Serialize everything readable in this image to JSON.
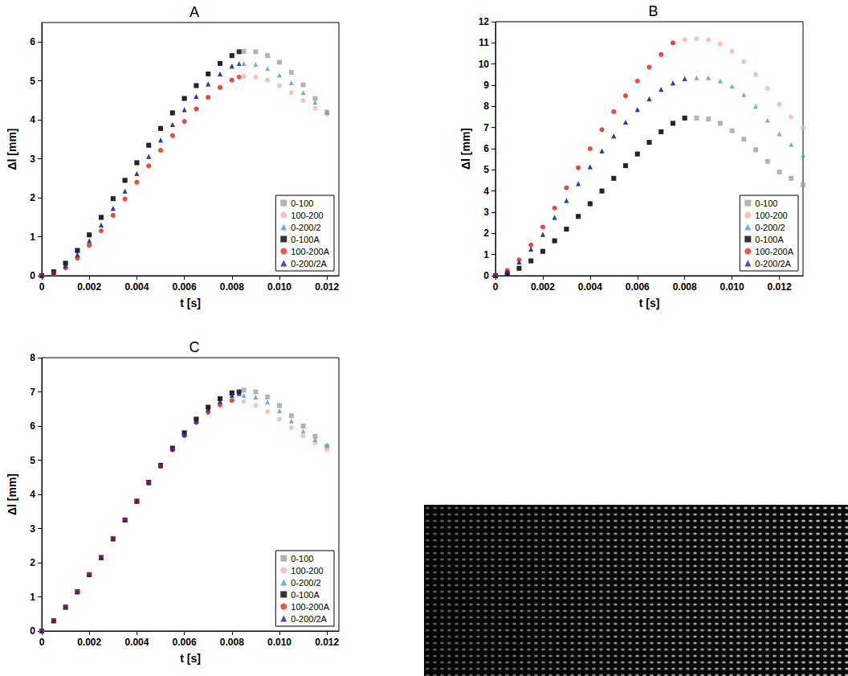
{
  "chart_data": [
    {
      "type": "scatter",
      "title": "A",
      "x_label": "t [s]",
      "y_label": "Δl [mm]",
      "xlim": [
        0,
        0.0125
      ],
      "ylim": [
        0,
        6.5
      ],
      "xticks": [
        0,
        0.002,
        0.004,
        0.006,
        0.008,
        {
          "value": 0.01,
          "label": "0.010"
        },
        0.012
      ],
      "yticks": [
        0,
        1,
        2,
        3,
        4,
        5,
        6
      ],
      "grid": false,
      "legend": "bottom right",
      "series": [
        {
          "name": "0-100",
          "color": "#a0a0a0",
          "marker": "square",
          "x": [
            0,
            0.0005,
            0.001,
            0.0015,
            0.002,
            0.0025,
            0.003,
            0.0035,
            0.004,
            0.0045,
            0.005,
            0.0055,
            0.006,
            0.0065,
            0.007,
            0.0075,
            0.008,
            0.0085,
            0.009,
            0.0095,
            0.01,
            0.0105,
            0.011,
            0.0115,
            0.012
          ],
          "values": [
            0,
            0.1,
            0.32,
            0.64,
            1.04,
            1.49,
            1.97,
            2.44,
            2.9,
            3.35,
            3.78,
            4.18,
            4.55,
            4.88,
            5.18,
            5.45,
            5.65,
            5.76,
            5.75,
            5.65,
            5.48,
            5.22,
            4.9,
            4.55,
            4.2
          ]
        },
        {
          "name": "100-200",
          "color": "#f2b3ac",
          "marker": "circle",
          "x": [
            0,
            0.0005,
            0.001,
            0.0015,
            0.002,
            0.0025,
            0.003,
            0.0035,
            0.004,
            0.0045,
            0.005,
            0.0055,
            0.006,
            0.0065,
            0.007,
            0.0075,
            0.008,
            0.0085,
            0.009,
            0.0095,
            0.01,
            0.0105,
            0.011,
            0.0115,
            0.012
          ],
          "values": [
            0,
            0.06,
            0.2,
            0.45,
            0.78,
            1.15,
            1.55,
            1.97,
            2.4,
            2.82,
            3.22,
            3.6,
            3.96,
            4.28,
            4.58,
            4.83,
            5.02,
            5.12,
            5.1,
            5.02,
            4.88,
            4.7,
            4.5,
            4.3,
            4.15
          ]
        },
        {
          "name": "0-200/2",
          "color": "#4aa3b8",
          "marker": "triangle",
          "x": [
            0,
            0.0005,
            0.001,
            0.0015,
            0.002,
            0.0025,
            0.003,
            0.0035,
            0.004,
            0.0045,
            0.005,
            0.0055,
            0.006,
            0.0065,
            0.007,
            0.0075,
            0.008,
            0.0085,
            0.009,
            0.0095,
            0.01,
            0.0105,
            0.011,
            0.0115,
            0.012
          ],
          "values": [
            0,
            0.08,
            0.26,
            0.54,
            0.9,
            1.3,
            1.73,
            2.17,
            2.62,
            3.06,
            3.48,
            3.88,
            4.26,
            4.6,
            4.92,
            5.18,
            5.38,
            5.45,
            5.42,
            5.32,
            5.15,
            4.95,
            4.7,
            4.45,
            4.2
          ]
        },
        {
          "name": "0-100A",
          "color": "#000000",
          "marker": "square",
          "x": [
            0,
            0.0005,
            0.001,
            0.0015,
            0.002,
            0.0025,
            0.003,
            0.0035,
            0.004,
            0.0045,
            0.005,
            0.0055,
            0.006,
            0.0065,
            0.007,
            0.0075,
            0.008,
            0.0083
          ],
          "values": [
            0,
            0.1,
            0.32,
            0.65,
            1.05,
            1.5,
            1.98,
            2.45,
            2.9,
            3.35,
            3.78,
            4.18,
            4.55,
            4.88,
            5.18,
            5.45,
            5.65,
            5.75
          ]
        },
        {
          "name": "100-200A",
          "color": "#e0301e",
          "marker": "circle",
          "x": [
            0,
            0.0005,
            0.001,
            0.0015,
            0.002,
            0.0025,
            0.003,
            0.0035,
            0.004,
            0.0045,
            0.005,
            0.0055,
            0.006,
            0.0065,
            0.007,
            0.0075,
            0.008,
            0.0083
          ],
          "values": [
            0,
            0.06,
            0.2,
            0.45,
            0.78,
            1.15,
            1.55,
            1.97,
            2.4,
            2.82,
            3.22,
            3.6,
            3.96,
            4.28,
            4.58,
            4.83,
            5.02,
            5.1
          ]
        },
        {
          "name": "0-200/2A",
          "color": "#1a1aa6",
          "marker": "triangle",
          "x": [
            0,
            0.0005,
            0.001,
            0.0015,
            0.002,
            0.0025,
            0.003,
            0.0035,
            0.004,
            0.0045,
            0.005,
            0.0055,
            0.006,
            0.0065,
            0.007,
            0.0075,
            0.008,
            0.0083
          ],
          "values": [
            0,
            0.08,
            0.26,
            0.54,
            0.9,
            1.3,
            1.73,
            2.17,
            2.62,
            3.06,
            3.48,
            3.88,
            4.26,
            4.6,
            4.92,
            5.18,
            5.38,
            5.45
          ]
        }
      ]
    },
    {
      "type": "scatter",
      "title": "B",
      "x_label": "t [s]",
      "y_label": "Δl [mm]",
      "xlim": [
        0,
        0.013
      ],
      "ylim": [
        0,
        12
      ],
      "xticks": [
        0,
        0.002,
        0.004,
        0.006,
        0.008,
        {
          "value": 0.01,
          "label": "0.010"
        },
        0.012
      ],
      "yticks": [
        0,
        1,
        2,
        3,
        4,
        5,
        6,
        7,
        8,
        9,
        10,
        11,
        12
      ],
      "grid": false,
      "legend": "bottom right",
      "series": [
        {
          "name": "0-100",
          "color": "#a0a0a0",
          "marker": "square",
          "x": [
            0,
            0.0005,
            0.001,
            0.0015,
            0.002,
            0.0025,
            0.003,
            0.0035,
            0.004,
            0.0045,
            0.005,
            0.0055,
            0.006,
            0.0065,
            0.007,
            0.0075,
            0.008,
            0.0085,
            0.009,
            0.0095,
            0.01,
            0.0105,
            0.011,
            0.0115,
            0.012,
            0.0125,
            0.013
          ],
          "values": [
            0,
            0.1,
            0.35,
            0.7,
            1.15,
            1.65,
            2.2,
            2.8,
            3.4,
            4.0,
            4.6,
            5.2,
            5.75,
            6.3,
            6.8,
            7.2,
            7.45,
            7.45,
            7.4,
            7.2,
            6.85,
            6.45,
            5.95,
            5.4,
            4.9,
            4.6,
            4.3
          ]
        },
        {
          "name": "100-200",
          "color": "#f2b3ac",
          "marker": "circle",
          "x": [
            0,
            0.0005,
            0.001,
            0.0015,
            0.002,
            0.0025,
            0.003,
            0.0035,
            0.004,
            0.0045,
            0.005,
            0.0055,
            0.006,
            0.0065,
            0.007,
            0.0075,
            0.008,
            0.0085,
            0.009,
            0.0095,
            0.01,
            0.0105,
            0.011,
            0.0115,
            0.012,
            0.0125,
            0.013
          ],
          "values": [
            0,
            0.25,
            0.75,
            1.45,
            2.3,
            3.2,
            4.15,
            5.1,
            6.0,
            6.9,
            7.75,
            8.5,
            9.2,
            9.85,
            10.45,
            11.0,
            11.15,
            11.2,
            11.15,
            10.95,
            10.6,
            10.1,
            9.5,
            8.85,
            8.1,
            7.5,
            7.0
          ]
        },
        {
          "name": "0-200/2",
          "color": "#4aa3b8",
          "marker": "triangle",
          "x": [
            0,
            0.0005,
            0.001,
            0.0015,
            0.002,
            0.0025,
            0.003,
            0.0035,
            0.004,
            0.0045,
            0.005,
            0.0055,
            0.006,
            0.0065,
            0.007,
            0.0075,
            0.008,
            0.0085,
            0.009,
            0.0095,
            0.01,
            0.0105,
            0.011,
            0.0115,
            0.012,
            0.0125,
            0.013
          ],
          "values": [
            0,
            0.2,
            0.65,
            1.25,
            1.95,
            2.75,
            3.55,
            4.35,
            5.15,
            5.9,
            6.6,
            7.25,
            7.85,
            8.35,
            8.8,
            9.1,
            9.3,
            9.35,
            9.35,
            9.2,
            8.95,
            8.55,
            8.0,
            7.35,
            6.7,
            6.2,
            5.7
          ]
        },
        {
          "name": "0-100A",
          "color": "#000000",
          "marker": "square",
          "x": [
            0,
            0.0005,
            0.001,
            0.0015,
            0.002,
            0.0025,
            0.003,
            0.0035,
            0.004,
            0.0045,
            0.005,
            0.0055,
            0.006,
            0.0065,
            0.007,
            0.0075,
            0.008
          ],
          "values": [
            0,
            0.1,
            0.35,
            0.7,
            1.15,
            1.65,
            2.2,
            2.8,
            3.4,
            4.0,
            4.6,
            5.2,
            5.75,
            6.3,
            6.8,
            7.2,
            7.45
          ]
        },
        {
          "name": "100-200A",
          "color": "#e0301e",
          "marker": "circle",
          "x": [
            0,
            0.0005,
            0.001,
            0.0015,
            0.002,
            0.0025,
            0.003,
            0.0035,
            0.004,
            0.0045,
            0.005,
            0.0055,
            0.006,
            0.0065,
            0.007,
            0.0075
          ],
          "values": [
            0,
            0.25,
            0.75,
            1.45,
            2.3,
            3.2,
            4.15,
            5.1,
            6.0,
            6.9,
            7.75,
            8.5,
            9.2,
            9.85,
            10.45,
            11.0
          ]
        },
        {
          "name": "0-200/2A",
          "color": "#1a1aa6",
          "marker": "triangle",
          "x": [
            0,
            0.0005,
            0.001,
            0.0015,
            0.002,
            0.0025,
            0.003,
            0.0035,
            0.004,
            0.0045,
            0.005,
            0.0055,
            0.006,
            0.0065,
            0.007,
            0.0075,
            0.008
          ],
          "values": [
            0,
            0.2,
            0.65,
            1.25,
            1.95,
            2.75,
            3.55,
            4.35,
            5.15,
            5.9,
            6.6,
            7.25,
            7.85,
            8.35,
            8.8,
            9.1,
            9.3
          ]
        }
      ]
    },
    {
      "type": "scatter",
      "title": "C",
      "x_label": "t [s]",
      "y_label": "Δl [mm]",
      "xlim": [
        0,
        0.0125
      ],
      "ylim": [
        0,
        8
      ],
      "xticks": [
        0,
        0.002,
        0.004,
        0.006,
        0.008,
        {
          "value": 0.01,
          "label": "0.010"
        },
        0.012
      ],
      "yticks": [
        0,
        1,
        2,
        3,
        4,
        5,
        6,
        7,
        8
      ],
      "grid": false,
      "legend": "bottom right",
      "series": [
        {
          "name": "0-100",
          "color": "#a0a0a0",
          "marker": "square",
          "x": [
            0,
            0.0005,
            0.001,
            0.0015,
            0.002,
            0.0025,
            0.003,
            0.0035,
            0.004,
            0.0045,
            0.005,
            0.0055,
            0.006,
            0.0065,
            0.007,
            0.0075,
            0.008,
            0.0085,
            0.009,
            0.0095,
            0.01,
            0.0105,
            0.011,
            0.0115,
            0.012
          ],
          "values": [
            0,
            0.3,
            0.7,
            1.15,
            1.65,
            2.15,
            2.7,
            3.25,
            3.8,
            4.35,
            4.85,
            5.35,
            5.8,
            6.2,
            6.55,
            6.8,
            6.97,
            7.05,
            7.0,
            6.85,
            6.6,
            6.3,
            6.0,
            5.7,
            5.4
          ]
        },
        {
          "name": "100-200",
          "color": "#f2b3ac",
          "marker": "circle",
          "x": [
            0,
            0.0005,
            0.001,
            0.0015,
            0.002,
            0.0025,
            0.003,
            0.0035,
            0.004,
            0.0045,
            0.005,
            0.0055,
            0.006,
            0.0065,
            0.007,
            0.0075,
            0.008,
            0.0085,
            0.009,
            0.0095,
            0.01,
            0.0105,
            0.011,
            0.0115,
            0.012
          ],
          "values": [
            0,
            0.3,
            0.7,
            1.15,
            1.65,
            2.15,
            2.7,
            3.25,
            3.8,
            4.33,
            4.82,
            5.3,
            5.72,
            6.1,
            6.4,
            6.62,
            6.75,
            6.72,
            6.6,
            6.42,
            6.2,
            5.95,
            5.7,
            5.5,
            5.3
          ]
        },
        {
          "name": "0-200/2",
          "color": "#4aa3b8",
          "marker": "triangle",
          "x": [
            0,
            0.0005,
            0.001,
            0.0015,
            0.002,
            0.0025,
            0.003,
            0.0035,
            0.004,
            0.0045,
            0.005,
            0.0055,
            0.006,
            0.0065,
            0.007,
            0.0075,
            0.008,
            0.0085,
            0.009,
            0.0095,
            0.01,
            0.0105,
            0.011,
            0.0115,
            0.012
          ],
          "values": [
            0,
            0.3,
            0.7,
            1.15,
            1.65,
            2.15,
            2.7,
            3.25,
            3.8,
            4.34,
            4.84,
            5.33,
            5.76,
            6.15,
            6.48,
            6.72,
            6.9,
            6.9,
            6.85,
            6.7,
            6.45,
            6.15,
            5.85,
            5.6,
            5.45
          ]
        },
        {
          "name": "0-100A",
          "color": "#000000",
          "marker": "square",
          "x": [
            0,
            0.0005,
            0.001,
            0.0015,
            0.002,
            0.0025,
            0.003,
            0.0035,
            0.004,
            0.0045,
            0.005,
            0.0055,
            0.006,
            0.0065,
            0.007,
            0.0075,
            0.008,
            0.0083
          ],
          "values": [
            0,
            0.3,
            0.7,
            1.15,
            1.65,
            2.15,
            2.7,
            3.25,
            3.8,
            4.35,
            4.85,
            5.35,
            5.8,
            6.2,
            6.55,
            6.8,
            6.97,
            7.0
          ]
        },
        {
          "name": "100-200A",
          "color": "#e0301e",
          "marker": "circle",
          "x": [
            0,
            0.0005,
            0.001,
            0.0015,
            0.002,
            0.0025,
            0.003,
            0.0035,
            0.004,
            0.0045,
            0.005,
            0.0055,
            0.006,
            0.0065,
            0.007,
            0.0075,
            0.008
          ],
          "values": [
            0,
            0.3,
            0.7,
            1.15,
            1.65,
            2.15,
            2.7,
            3.25,
            3.8,
            4.33,
            4.82,
            5.3,
            5.72,
            6.1,
            6.4,
            6.62,
            6.75
          ]
        },
        {
          "name": "0-200/2A",
          "color": "#1a1aa6",
          "marker": "triangle",
          "x": [
            0,
            0.0005,
            0.001,
            0.0015,
            0.002,
            0.0025,
            0.003,
            0.0035,
            0.004,
            0.0045,
            0.005,
            0.0055,
            0.006,
            0.0065,
            0.007,
            0.0075,
            0.008,
            0.0083
          ],
          "values": [
            0,
            0.3,
            0.7,
            1.15,
            1.65,
            2.15,
            2.7,
            3.25,
            3.8,
            4.34,
            4.84,
            5.33,
            5.76,
            6.15,
            6.48,
            6.72,
            6.9,
            6.95
          ]
        }
      ]
    }
  ]
}
